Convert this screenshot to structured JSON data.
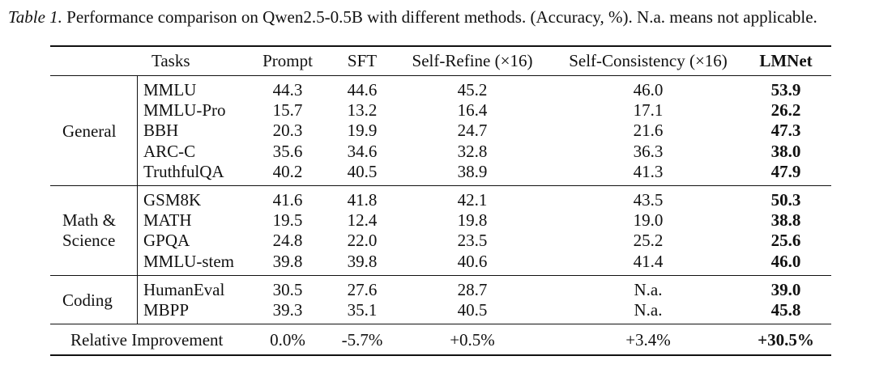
{
  "caption": {
    "label": "Table 1.",
    "text": "Performance comparison on Qwen2.5-0.5B with different methods. (Accuracy, %). N.a. means not applicable."
  },
  "table": {
    "headers": [
      "Tasks",
      "Prompt",
      "SFT",
      "Self-Refine (×16)",
      "Self-Consistency (×16)",
      "LMNet"
    ],
    "groups": [
      {
        "label": [
          "General"
        ],
        "rows": [
          {
            "task": "MMLU",
            "values": [
              "44.3",
              "44.6",
              "45.2",
              "46.0",
              "53.9"
            ]
          },
          {
            "task": "MMLU-Pro",
            "values": [
              "15.7",
              "13.2",
              "16.4",
              "17.1",
              "26.2"
            ]
          },
          {
            "task": "BBH",
            "values": [
              "20.3",
              "19.9",
              "24.7",
              "21.6",
              "47.3"
            ]
          },
          {
            "task": "ARC-C",
            "values": [
              "35.6",
              "34.6",
              "32.8",
              "36.3",
              "38.0"
            ]
          },
          {
            "task": "TruthfulQA",
            "values": [
              "40.2",
              "40.5",
              "38.9",
              "41.3",
              "47.9"
            ]
          }
        ]
      },
      {
        "label": [
          "Math &",
          "Science"
        ],
        "rows": [
          {
            "task": "GSM8K",
            "values": [
              "41.6",
              "41.8",
              "42.1",
              "43.5",
              "50.3"
            ]
          },
          {
            "task": "MATH",
            "values": [
              "19.5",
              "12.4",
              "19.8",
              "19.0",
              "38.8"
            ]
          },
          {
            "task": "GPQA",
            "values": [
              "24.8",
              "22.0",
              "23.5",
              "25.2",
              "25.6"
            ]
          },
          {
            "task": "MMLU-stem",
            "values": [
              "39.8",
              "39.8",
              "40.6",
              "41.4",
              "46.0"
            ]
          }
        ]
      },
      {
        "label": [
          "Coding"
        ],
        "rows": [
          {
            "task": "HumanEval",
            "values": [
              "30.5",
              "27.6",
              "28.7",
              "N.a.",
              "39.0"
            ]
          },
          {
            "task": "MBPP",
            "values": [
              "39.3",
              "35.1",
              "40.5",
              "N.a.",
              "45.8"
            ]
          }
        ]
      }
    ],
    "summary": {
      "label": "Relative Improvement",
      "values": [
        "0.0%",
        "-5.7%",
        "+0.5%",
        "+3.4%",
        "+30.5%"
      ]
    }
  }
}
